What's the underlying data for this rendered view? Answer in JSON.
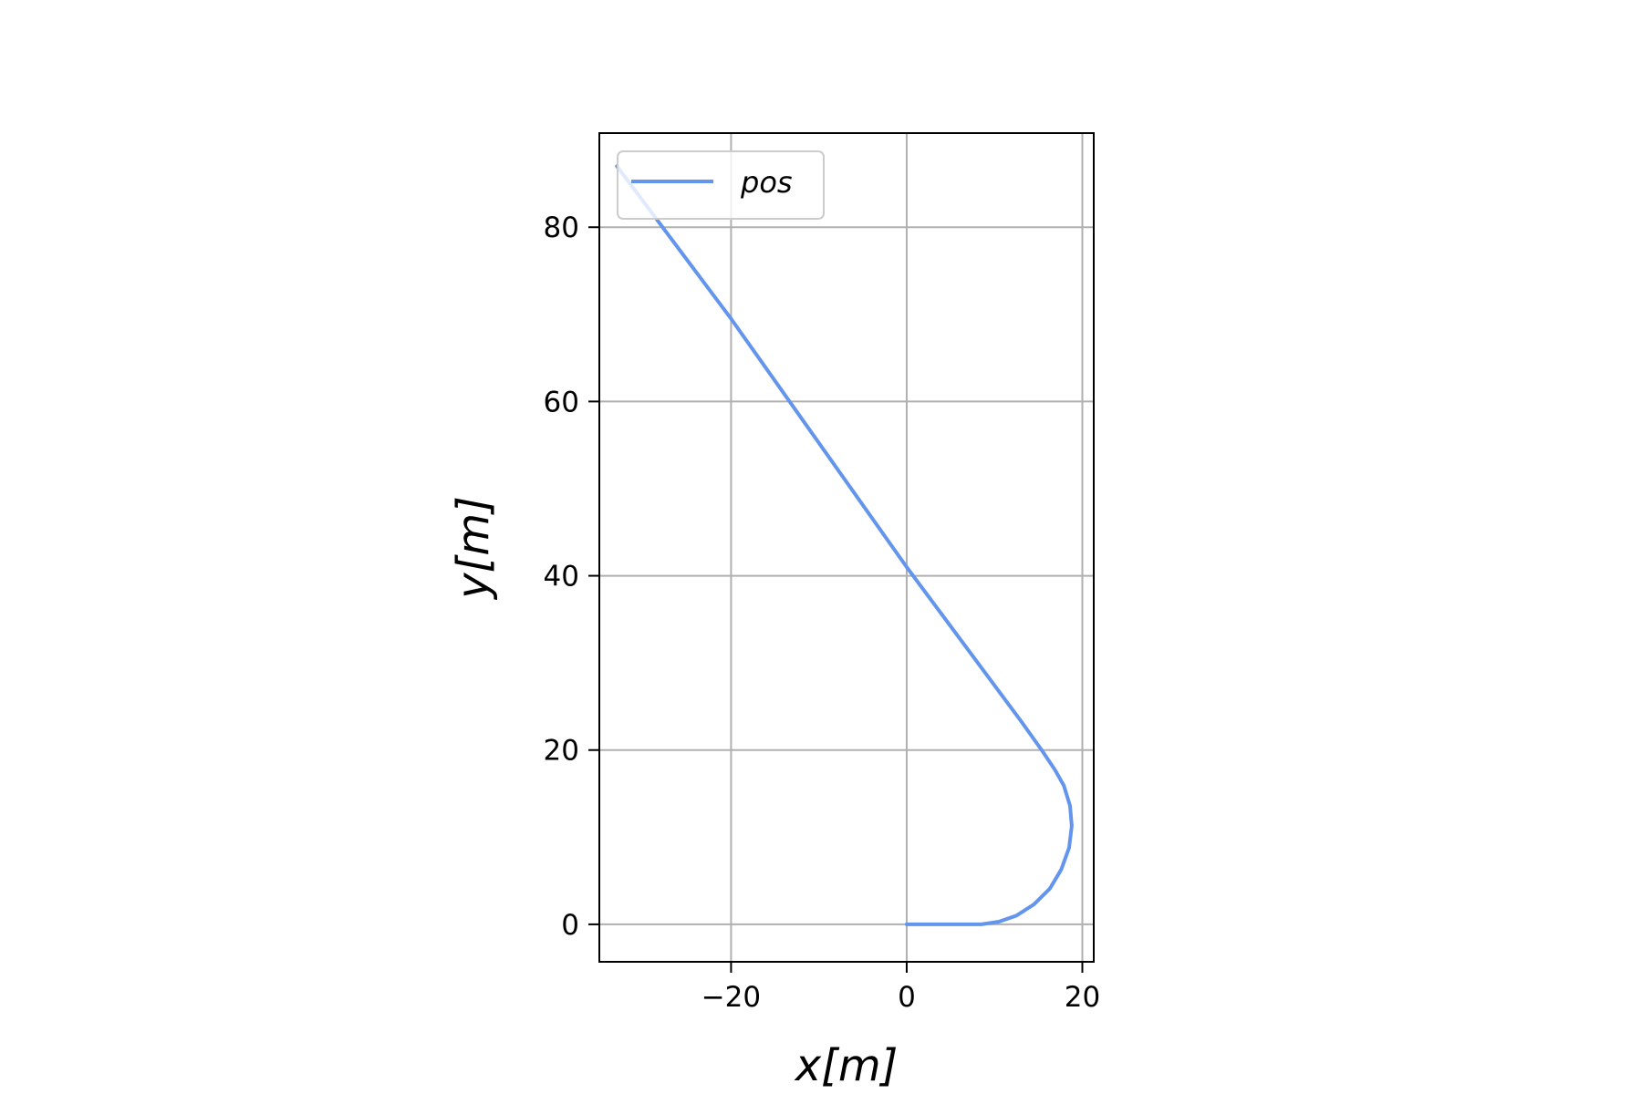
{
  "chart_data": {
    "type": "line",
    "xlabel": "x[m]",
    "ylabel": "y[m]",
    "xlim": [
      -35,
      21.3
    ],
    "ylim": [
      -4.3,
      90.8
    ],
    "grid": true,
    "legend_position": "top-left",
    "xticks": [
      {
        "value": -20,
        "label": "−20"
      },
      {
        "value": 0,
        "label": "0"
      },
      {
        "value": 20,
        "label": "20"
      }
    ],
    "yticks": [
      {
        "value": 0,
        "label": "0"
      },
      {
        "value": 20,
        "label": "20"
      },
      {
        "value": 40,
        "label": "40"
      },
      {
        "value": 60,
        "label": "60"
      },
      {
        "value": 80,
        "label": "80"
      }
    ],
    "series": [
      {
        "name": "pos",
        "color": "#6495ED",
        "x": [
          0,
          4,
          8.5,
          10.5,
          12.5,
          14.5,
          16.3,
          17.6,
          18.5,
          18.8,
          18.6,
          17.9,
          16.9,
          15.5,
          13.1,
          0,
          -20,
          -33
        ],
        "y": [
          0,
          0,
          0,
          0.3,
          1.0,
          2.3,
          4.1,
          6.3,
          8.8,
          11.3,
          13.6,
          15.9,
          17.7,
          19.8,
          23.2,
          41,
          69.5,
          87
        ]
      }
    ]
  }
}
